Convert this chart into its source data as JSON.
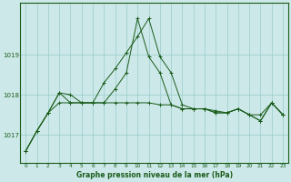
{
  "title": "Graphe pression niveau de la mer (hPa)",
  "bg_color": "#cce8e8",
  "grid_color": "#99cccc",
  "line_color": "#1a5c1a",
  "hours": [
    0,
    1,
    2,
    3,
    4,
    5,
    6,
    7,
    8,
    9,
    10,
    11,
    12,
    13,
    14,
    15,
    16,
    17,
    18,
    19,
    20,
    21,
    22,
    23
  ],
  "series1": [
    1016.6,
    1017.1,
    1017.55,
    1018.05,
    1018.0,
    1017.8,
    1017.8,
    1018.3,
    1018.65,
    1019.05,
    1019.45,
    1019.9,
    1018.95,
    1018.55,
    1017.75,
    1017.65,
    1017.65,
    1017.6,
    1017.55,
    1017.65,
    1017.5,
    1017.5,
    1017.8,
    1017.5
  ],
  "series2": [
    1016.6,
    1017.1,
    1017.55,
    1018.05,
    1017.8,
    1017.8,
    1017.8,
    1017.8,
    1018.15,
    1018.55,
    1019.9,
    1018.95,
    1018.55,
    1017.75,
    1017.65,
    1017.65,
    1017.65,
    1017.55,
    1017.55,
    1017.65,
    1017.5,
    1017.35,
    1017.8,
    1017.5
  ],
  "series3": [
    1016.6,
    1017.1,
    1017.55,
    1017.8,
    1017.8,
    1017.8,
    1017.8,
    1017.8,
    1017.8,
    1017.8,
    1017.8,
    1017.8,
    1017.75,
    1017.75,
    1017.65,
    1017.65,
    1017.65,
    1017.55,
    1017.55,
    1017.65,
    1017.5,
    1017.35,
    1017.8,
    1017.5
  ],
  "ylim_min": 1016.3,
  "ylim_max": 1020.3,
  "yticks": [
    1017,
    1018,
    1019
  ],
  "tick_color": "#1a5c1a",
  "xlabel_fontsize": 5.5,
  "ylabel_fontsize": 5.0,
  "xtick_fontsize": 4.2,
  "ytick_fontsize": 5.0
}
